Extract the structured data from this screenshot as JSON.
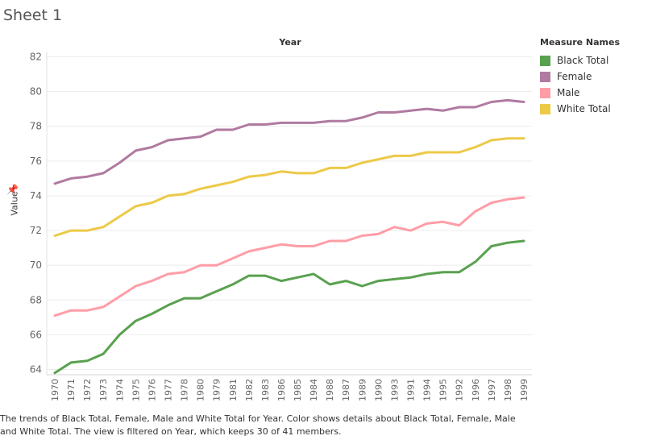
{
  "sheet": {
    "title": "Sheet 1"
  },
  "caption": "The trends of Black Total, Female, Male and White Total for Year.  Color shows details about Black Total, Female, Male and White Total. The view is filtered on Year, which keeps 30 of 41 members.",
  "legend": {
    "title": "Measure Names",
    "items": [
      {
        "label": "Black Total",
        "color": "#59a14f"
      },
      {
        "label": "Female",
        "color": "#b07aa1"
      },
      {
        "label": "Male",
        "color": "#ff9da7"
      },
      {
        "label": "White Total",
        "color": "#edc948"
      }
    ]
  },
  "chart_data": {
    "type": "line",
    "title": "",
    "xlabel": "Year",
    "ylabel": "Value",
    "ylim": [
      63.7,
      82.3
    ],
    "yticks": [
      64,
      66,
      68,
      70,
      72,
      74,
      76,
      78,
      80,
      82
    ],
    "grid": true,
    "legend_position": "right",
    "categories": [
      "1970",
      "1971",
      "1972",
      "1973",
      "1974",
      "1975",
      "1976",
      "1977",
      "1978",
      "1980",
      "1979",
      "1981",
      "1982",
      "1983",
      "1986",
      "1985",
      "1984",
      "1988",
      "1987",
      "1989",
      "1990",
      "1993",
      "1991",
      "1994",
      "1995",
      "1992",
      "1996",
      "1997",
      "1998",
      "1999"
    ],
    "series": [
      {
        "name": "Black Total",
        "color": "#59a14f",
        "values": [
          63.8,
          64.4,
          64.5,
          64.9,
          66.0,
          66.8,
          67.2,
          67.7,
          68.1,
          68.1,
          68.5,
          68.9,
          69.4,
          69.4,
          69.1,
          69.3,
          69.5,
          68.9,
          69.1,
          68.8,
          69.1,
          69.2,
          69.3,
          69.5,
          69.6,
          69.6,
          70.2,
          71.1,
          71.3,
          71.4
        ]
      },
      {
        "name": "Female",
        "color": "#b07aa1",
        "values": [
          74.7,
          75.0,
          75.1,
          75.3,
          75.9,
          76.6,
          76.8,
          77.2,
          77.3,
          77.4,
          77.8,
          77.8,
          78.1,
          78.1,
          78.2,
          78.2,
          78.2,
          78.3,
          78.3,
          78.5,
          78.8,
          78.8,
          78.9,
          79.0,
          78.9,
          79.1,
          79.1,
          79.4,
          79.5,
          79.4
        ]
      },
      {
        "name": "Male",
        "color": "#ff9da7",
        "values": [
          67.1,
          67.4,
          67.4,
          67.6,
          68.2,
          68.8,
          69.1,
          69.5,
          69.6,
          70.0,
          70.0,
          70.4,
          70.8,
          71.0,
          71.2,
          71.1,
          71.1,
          71.4,
          71.4,
          71.7,
          71.8,
          72.2,
          72.0,
          72.4,
          72.5,
          72.3,
          73.1,
          73.6,
          73.8,
          73.9
        ]
      },
      {
        "name": "White Total",
        "color": "#edc948",
        "values": [
          71.7,
          72.0,
          72.0,
          72.2,
          72.8,
          73.4,
          73.6,
          74.0,
          74.1,
          74.4,
          74.6,
          74.8,
          75.1,
          75.2,
          75.4,
          75.3,
          75.3,
          75.6,
          75.6,
          75.9,
          76.1,
          76.3,
          76.3,
          76.5,
          76.5,
          76.5,
          76.8,
          77.2,
          77.3,
          77.3
        ]
      }
    ]
  }
}
